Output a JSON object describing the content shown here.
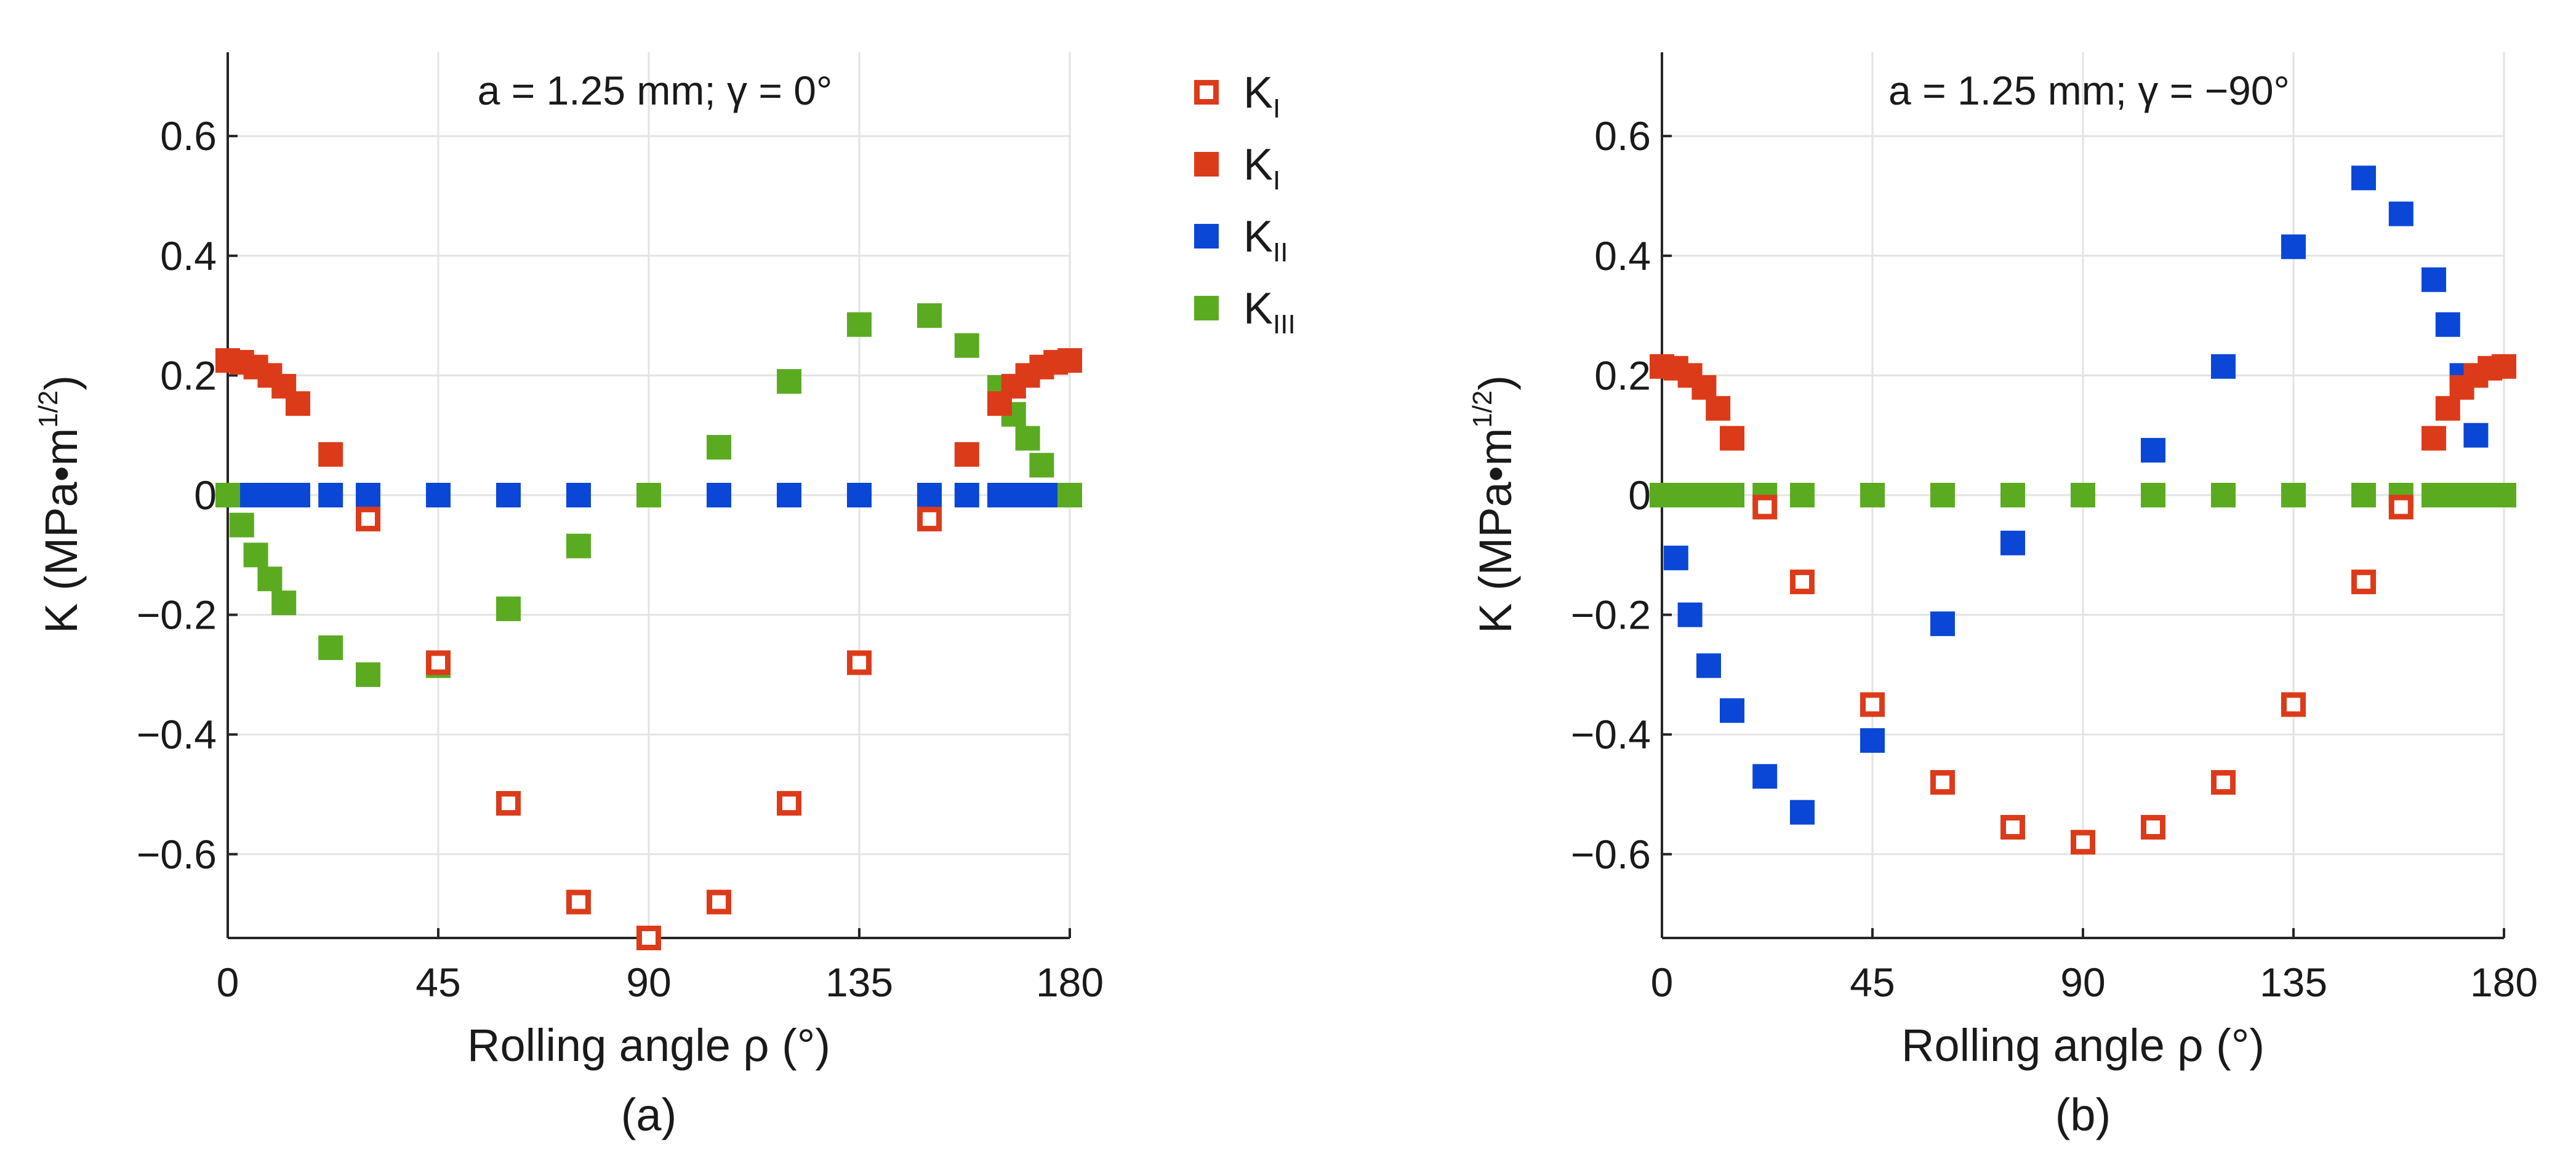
{
  "chart_data": [
    {
      "type": "scatter",
      "panel": "a",
      "title": "a = 1.25 mm; γ  = 0°",
      "caption": "(a)",
      "xlabel": "Rolling angle ρ  (°)",
      "ylabel": "K (MPa•m",
      "ylabel_sup": "1/2",
      "ylabel_close": ")",
      "xlim": [
        0,
        180
      ],
      "ylim": [
        -0.74,
        0.74
      ],
      "xticks": [
        0,
        45,
        90,
        135,
        180
      ],
      "xtick_labels": [
        "0",
        "45",
        "90",
        "135",
        "180"
      ],
      "yticks": [
        -0.6,
        -0.4,
        -0.2,
        0,
        0.2,
        0.4,
        0.6
      ],
      "ytick_labels": [
        "−0.6",
        "−0.4",
        "−0.2",
        "0",
        "0.2",
        "0.4",
        "0.6"
      ],
      "grid": true,
      "series": [
        {
          "name": "KI (open)",
          "style": "open",
          "color": "#dc3b1a",
          "points": [
            [
              30,
              -0.04
            ],
            [
              45,
              -0.28
            ],
            [
              60,
              -0.515
            ],
            [
              75,
              -0.68
            ],
            [
              90,
              -0.74
            ],
            [
              105,
              -0.68
            ],
            [
              120,
              -0.515
            ],
            [
              135,
              -0.28
            ],
            [
              150,
              -0.04
            ]
          ]
        },
        {
          "name": "KI (filled)",
          "style": "filled",
          "color": "#dc3b1a",
          "points": [
            [
              0,
              0.225
            ],
            [
              3,
              0.222
            ],
            [
              6,
              0.214
            ],
            [
              9,
              0.2
            ],
            [
              12,
              0.182
            ],
            [
              15,
              0.153
            ],
            [
              22,
              0.068
            ],
            [
              158,
              0.068
            ],
            [
              165,
              0.153
            ],
            [
              168,
              0.182
            ],
            [
              171,
              0.2
            ],
            [
              174,
              0.214
            ],
            [
              177,
              0.222
            ],
            [
              180,
              0.225
            ]
          ]
        },
        {
          "name": "KII",
          "style": "filled",
          "color": "#0a47d6",
          "points": [
            [
              0,
              0
            ],
            [
              3,
              0
            ],
            [
              6,
              0
            ],
            [
              9,
              0
            ],
            [
              12,
              0
            ],
            [
              15,
              0
            ],
            [
              22,
              0
            ],
            [
              30,
              0
            ],
            [
              45,
              0
            ],
            [
              60,
              0
            ],
            [
              75,
              0
            ],
            [
              90,
              0
            ],
            [
              105,
              0
            ],
            [
              120,
              0
            ],
            [
              135,
              0
            ],
            [
              150,
              0
            ],
            [
              158,
              0
            ],
            [
              165,
              0
            ],
            [
              168,
              0
            ],
            [
              171,
              0
            ],
            [
              174,
              0
            ],
            [
              177,
              0
            ],
            [
              180,
              0
            ]
          ]
        },
        {
          "name": "KIII",
          "style": "filled",
          "color": "#5bab21",
          "points": [
            [
              0,
              0
            ],
            [
              3,
              -0.05
            ],
            [
              6,
              -0.1
            ],
            [
              9,
              -0.14
            ],
            [
              12,
              -0.18
            ],
            [
              22,
              -0.255
            ],
            [
              30,
              -0.3
            ],
            [
              45,
              -0.285
            ],
            [
              60,
              -0.19
            ],
            [
              75,
              -0.085
            ],
            [
              90,
              0
            ],
            [
              105,
              0.08
            ],
            [
              120,
              0.19
            ],
            [
              135,
              0.285
            ],
            [
              150,
              0.3
            ],
            [
              158,
              0.25
            ],
            [
              165,
              0.18
            ],
            [
              168,
              0.135
            ],
            [
              171,
              0.095
            ],
            [
              174,
              0.05
            ],
            [
              180,
              0
            ]
          ]
        }
      ]
    },
    {
      "type": "scatter",
      "panel": "b",
      "title": "a = 1.25 mm; γ  = −90°",
      "caption": "(b)",
      "xlabel": "Rolling angle ρ  (°)",
      "ylabel": "K (MPa•m",
      "ylabel_sup": "1/2",
      "ylabel_close": ")",
      "xlim": [
        0,
        180
      ],
      "ylim": [
        -0.74,
        0.74
      ],
      "xticks": [
        0,
        45,
        90,
        135,
        180
      ],
      "xtick_labels": [
        "0",
        "45",
        "90",
        "135",
        "180"
      ],
      "yticks": [
        -0.6,
        -0.4,
        -0.2,
        0,
        0.2,
        0.4,
        0.6
      ],
      "ytick_labels": [
        "−0.6",
        "−0.4",
        "−0.2",
        "0",
        "0.2",
        "0.4",
        "0.6"
      ],
      "grid": true,
      "series": [
        {
          "name": "KI (open)",
          "style": "open",
          "color": "#dc3b1a",
          "points": [
            [
              22,
              -0.02
            ],
            [
              30,
              -0.145
            ],
            [
              45,
              -0.35
            ],
            [
              60,
              -0.48
            ],
            [
              75,
              -0.555
            ],
            [
              90,
              -0.58
            ],
            [
              105,
              -0.555
            ],
            [
              120,
              -0.48
            ],
            [
              135,
              -0.35
            ],
            [
              150,
              -0.145
            ],
            [
              158,
              -0.02
            ]
          ]
        },
        {
          "name": "KI (filled)",
          "style": "filled",
          "color": "#dc3b1a",
          "points": [
            [
              0,
              0.215
            ],
            [
              3,
              0.212
            ],
            [
              6,
              0.2
            ],
            [
              9,
              0.18
            ],
            [
              12,
              0.145
            ],
            [
              15,
              0.095
            ],
            [
              165,
              0.095
            ],
            [
              168,
              0.145
            ],
            [
              171,
              0.18
            ],
            [
              174,
              0.2
            ],
            [
              177,
              0.212
            ],
            [
              180,
              0.215
            ]
          ]
        },
        {
          "name": "KII",
          "style": "filled",
          "color": "#0a47d6",
          "points": [
            [
              3,
              -0.105
            ],
            [
              6,
              -0.2
            ],
            [
              10,
              -0.285
            ],
            [
              15,
              -0.36
            ],
            [
              22,
              -0.47
            ],
            [
              30,
              -0.53
            ],
            [
              45,
              -0.41
            ],
            [
              60,
              -0.215
            ],
            [
              75,
              -0.08
            ],
            [
              90,
              0
            ],
            [
              105,
              0.075
            ],
            [
              120,
              0.215
            ],
            [
              135,
              0.415
            ],
            [
              150,
              0.53
            ],
            [
              158,
              0.47
            ],
            [
              165,
              0.36
            ],
            [
              168,
              0.285
            ],
            [
              171,
              0.2
            ],
            [
              174,
              0.1
            ]
          ]
        },
        {
          "name": "KIII",
          "style": "filled",
          "color": "#5bab21",
          "points": [
            [
              0,
              0
            ],
            [
              3,
              0
            ],
            [
              6,
              0
            ],
            [
              9,
              0
            ],
            [
              12,
              0
            ],
            [
              15,
              0
            ],
            [
              22,
              0
            ],
            [
              30,
              0
            ],
            [
              45,
              0
            ],
            [
              60,
              0
            ],
            [
              75,
              0
            ],
            [
              90,
              0
            ],
            [
              105,
              0
            ],
            [
              120,
              0
            ],
            [
              135,
              0
            ],
            [
              150,
              0
            ],
            [
              158,
              0
            ],
            [
              165,
              0
            ],
            [
              168,
              0
            ],
            [
              171,
              0
            ],
            [
              174,
              0
            ],
            [
              177,
              0
            ],
            [
              180,
              0
            ]
          ]
        }
      ]
    }
  ],
  "legend": {
    "placement": "center-top",
    "entries": [
      {
        "base": "K",
        "sub": "I",
        "style": "open",
        "color": "#dc3b1a"
      },
      {
        "base": "K",
        "sub": "I",
        "style": "filled",
        "color": "#dc3b1a"
      },
      {
        "base": "K",
        "sub": "II",
        "style": "filled",
        "color": "#0a47d6"
      },
      {
        "base": "K",
        "sub": "III",
        "style": "filled",
        "color": "#5bab21"
      }
    ]
  }
}
